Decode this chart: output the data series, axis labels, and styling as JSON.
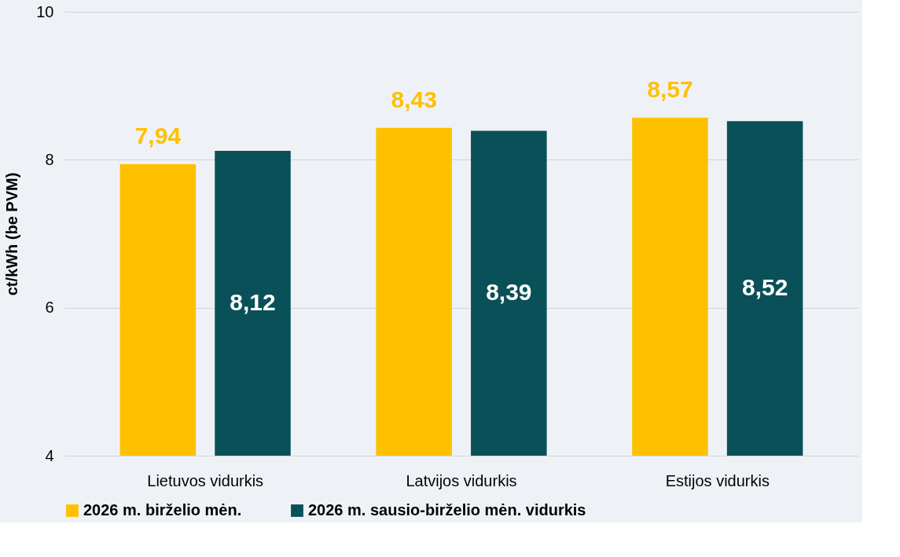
{
  "chart_data": {
    "type": "bar",
    "ylabel": "ct/kWh (be PVM)",
    "categories": [
      "Lietuvos vidurkis",
      "Latvijos vidurkis",
      "Estijos vidurkis"
    ],
    "series": [
      {
        "name": "2026 m. birželio mėn.",
        "color": "#ffc000",
        "values": [
          7.94,
          8.43,
          8.57
        ],
        "value_labels": [
          "7,94",
          "8,43",
          "8,57"
        ]
      },
      {
        "name": "2026 m. sausio-birželio mėn. vidurkis",
        "color": "#0a5058",
        "values": [
          8.12,
          8.39,
          8.52
        ],
        "value_labels": [
          "8,12",
          "8,39",
          "8,52"
        ]
      }
    ],
    "ylim": [
      4,
      10
    ],
    "yticks": [
      4,
      6,
      8,
      10
    ],
    "grid": "y",
    "legend": "bottom"
  }
}
